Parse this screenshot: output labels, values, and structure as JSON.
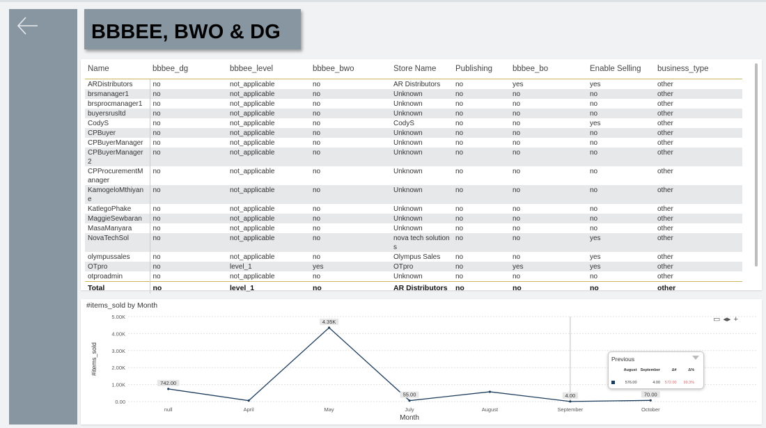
{
  "page": {
    "title": "BBBEE, BWO & DG"
  },
  "table": {
    "columns": [
      "Name",
      "bbbee_dg",
      "bbbee_level",
      "bbbee_bwo",
      "Store Name",
      "Publishing",
      "bbbee_bo",
      "Enable Selling",
      "business_type"
    ],
    "rows": [
      [
        "ARDistributors",
        "no",
        "not_applicable",
        "no",
        "AR Distributors",
        "no",
        "yes",
        "yes",
        "other"
      ],
      [
        "brsmanager1",
        "no",
        "not_applicable",
        "no",
        "Unknown",
        "no",
        "no",
        "no",
        "other"
      ],
      [
        "brsprocmanager1",
        "no",
        "not_applicable",
        "no",
        "Unknown",
        "no",
        "no",
        "no",
        "other"
      ],
      [
        "buyersrusltd",
        "no",
        "not_applicable",
        "no",
        "Unknown",
        "no",
        "no",
        "no",
        "other"
      ],
      [
        "CodyS",
        "no",
        "not_applicable",
        "no",
        "CodyS",
        "no",
        "no",
        "yes",
        "other"
      ],
      [
        "CPBuyer",
        "no",
        "not_applicable",
        "no",
        "Unknown",
        "no",
        "no",
        "no",
        "other"
      ],
      [
        "CPBuyerManager",
        "no",
        "not_applicable",
        "no",
        "Unknown",
        "no",
        "no",
        "no",
        "other"
      ],
      [
        "CPBuyerManager2",
        "no",
        "not_applicable",
        "no",
        "Unknown",
        "no",
        "no",
        "no",
        "other"
      ],
      [
        "CPProcurementManager",
        "no",
        "not_applicable",
        "no",
        "Unknown",
        "no",
        "no",
        "no",
        "other"
      ],
      [
        "KamogeloMthiyane",
        "no",
        "not_applicable",
        "no",
        "Unknown",
        "no",
        "no",
        "no",
        "other"
      ],
      [
        "KatlegoPhake",
        "no",
        "not_applicable",
        "no",
        "Unknown",
        "no",
        "no",
        "no",
        "other"
      ],
      [
        "MaggieSewbaran",
        "no",
        "not_applicable",
        "no",
        "Unknown",
        "no",
        "no",
        "no",
        "other"
      ],
      [
        "MasaManyara",
        "no",
        "not_applicable",
        "no",
        "Unknown",
        "no",
        "no",
        "no",
        "other"
      ],
      [
        "NovaTechSol",
        "no",
        "not_applicable",
        "no",
        "nova tech solutions",
        "no",
        "no",
        "yes",
        "other"
      ],
      [
        "olympussales",
        "no",
        "not_applicable",
        "no",
        "Olympus Sales",
        "no",
        "no",
        "yes",
        "other"
      ],
      [
        "OTpro",
        "no",
        "level_1",
        "yes",
        "OTpro",
        "no",
        "yes",
        "yes",
        "other"
      ],
      [
        "otproadmin",
        "no",
        "not_applicable",
        "no",
        "Unknown",
        "no",
        "no",
        "no",
        "other"
      ]
    ],
    "total": [
      "Total",
      "no",
      "level_1",
      "no",
      "AR Distributors",
      "no",
      "no",
      "no",
      "other"
    ]
  },
  "chart": {
    "title": "#items_sold by Month",
    "tooltip": {
      "title": "Previous",
      "headers": [
        "August",
        "September",
        "Δ#",
        "Δ%"
      ],
      "values": [
        "576.00",
        "4.00",
        "572.00",
        "99.3%"
      ]
    }
  },
  "chart_data": {
    "type": "line",
    "title": "#items_sold by Month",
    "xlabel": "Month",
    "ylabel": "#items_sold",
    "categories": [
      "null",
      "April",
      "May",
      "July",
      "August",
      "September",
      "October"
    ],
    "values": [
      742,
      55,
      4350,
      55,
      576,
      4,
      70
    ],
    "data_labels": [
      "742.00",
      null,
      "4.35K",
      "55.00",
      null,
      "4.00",
      "70.00"
    ],
    "y_ticks": [
      "0.00",
      "1.00K",
      "2.00K",
      "3.00K",
      "4.00K",
      "5.00K"
    ],
    "ylim": [
      0,
      5000
    ],
    "line_color": "#1c3c5c",
    "grid": true
  }
}
